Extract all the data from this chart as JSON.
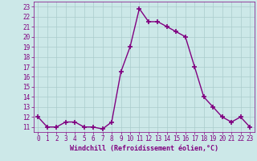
{
  "x": [
    0,
    1,
    2,
    3,
    4,
    5,
    6,
    7,
    8,
    9,
    10,
    11,
    12,
    13,
    14,
    15,
    16,
    17,
    18,
    19,
    20,
    21,
    22,
    23
  ],
  "y": [
    12,
    11,
    11,
    11.5,
    11.5,
    11,
    11,
    10.8,
    11.5,
    16.5,
    19,
    22.8,
    21.5,
    21.5,
    21,
    20.5,
    20,
    17,
    14,
    13,
    12,
    11.5,
    12,
    11
  ],
  "line_color": "#800080",
  "marker": "+",
  "marker_size": 4,
  "linewidth": 1.0,
  "bg_color": "#cce8e8",
  "grid_color": "#aacccc",
  "xlabel": "Windchill (Refroidissement éolien,°C)",
  "xlabel_color": "#800080",
  "xlabel_fontsize": 6.0,
  "tick_color": "#800080",
  "tick_fontsize": 5.5,
  "ylim": [
    10.5,
    23.5
  ],
  "yticks": [
    11,
    12,
    13,
    14,
    15,
    16,
    17,
    18,
    19,
    20,
    21,
    22,
    23
  ],
  "xticks": [
    0,
    1,
    2,
    3,
    4,
    5,
    6,
    7,
    8,
    9,
    10,
    11,
    12,
    13,
    14,
    15,
    16,
    17,
    18,
    19,
    20,
    21,
    22,
    23
  ]
}
